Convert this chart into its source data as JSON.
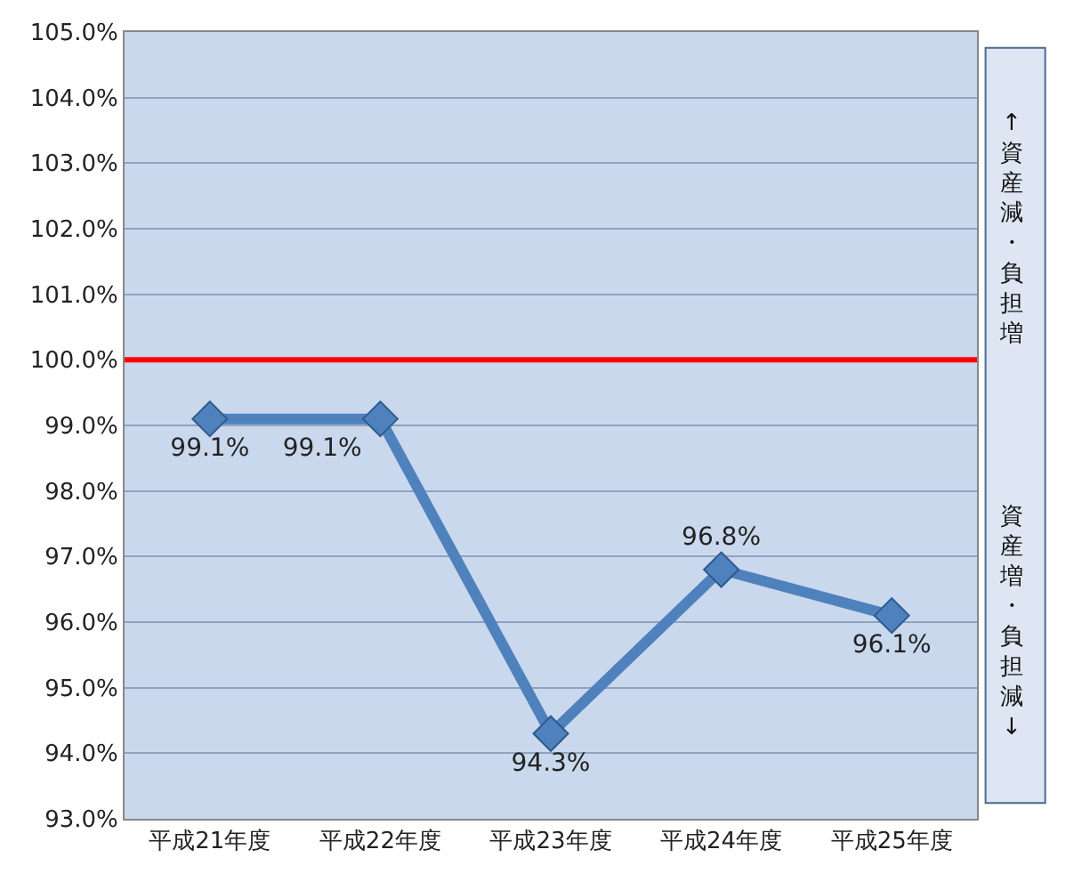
{
  "chart_data": {
    "type": "line",
    "categories": [
      "平成21年度",
      "平成22年度",
      "平成23年度",
      "平成24年度",
      "平成25年度"
    ],
    "series": [
      {
        "color": "#4f81bd",
        "values": [
          99.1,
          99.1,
          94.3,
          96.8,
          96.1
        ]
      }
    ],
    "value_labels": [
      "99.1%",
      "99.1%",
      "94.3%",
      "96.8%",
      "96.1%"
    ],
    "ylim": [
      93,
      105
    ],
    "yticks": [
      {
        "value": 93,
        "label": "93.0%"
      },
      {
        "value": 94,
        "label": "94.0%"
      },
      {
        "value": 95,
        "label": "95.0%"
      },
      {
        "value": 96,
        "label": "96.0%"
      },
      {
        "value": 97,
        "label": "97.0%"
      },
      {
        "value": 98,
        "label": "98.0%"
      },
      {
        "value": 99,
        "label": "99.0%"
      },
      {
        "value": 100,
        "label": "100.0%"
      },
      {
        "value": 101,
        "label": "101.0%"
      },
      {
        "value": 102,
        "label": "102.0%"
      },
      {
        "value": 103,
        "label": "103.0%"
      },
      {
        "value": 104,
        "label": "104.0%"
      },
      {
        "value": 105,
        "label": "105.0%"
      }
    ],
    "ref_lines": [
      {
        "axis": "y",
        "value": 100,
        "color": "#ff0000"
      }
    ],
    "annotations": [
      "↑ 資産減・負担増",
      "資産増・負担減 ↓"
    ],
    "grid": "y",
    "marker": "diamond",
    "line_style": "solid"
  }
}
